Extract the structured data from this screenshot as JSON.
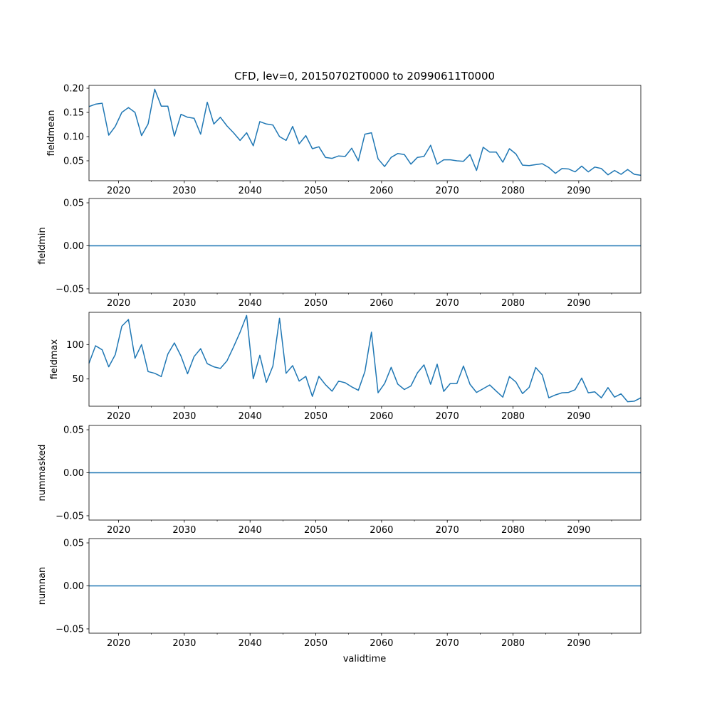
{
  "title": "CFD, lev=0, 20150702T0000 to 20990611T0000",
  "xlabel": "validtime",
  "chart_data": {
    "type": "line",
    "title": "CFD, lev=0, 20150702T0000 to 20990611T0000",
    "xlabel": "validtime",
    "xlim": [
      2015.5,
      2099.44
    ],
    "x_start": 2015.5,
    "x_end": 2099.44,
    "n_points": 85,
    "xticks": [
      2020,
      2030,
      2040,
      2050,
      2060,
      2070,
      2080,
      2090
    ],
    "xminor_ticks": [
      2025,
      2035,
      2045,
      2055,
      2065,
      2075,
      2085,
      2095
    ],
    "line_color": "#1f77b4",
    "subplots": [
      {
        "ylabel": "fieldmean",
        "ylim": [
          0.0088,
          0.2059
        ],
        "yticks": [
          0.05,
          0.1,
          0.15,
          0.2
        ],
        "ytick_labels": [
          "0.05",
          "0.10",
          "0.15",
          "0.20"
        ],
        "values": [
          0.162,
          0.167,
          0.169,
          0.103,
          0.121,
          0.15,
          0.16,
          0.15,
          0.102,
          0.126,
          0.198,
          0.163,
          0.163,
          0.101,
          0.146,
          0.14,
          0.138,
          0.105,
          0.171,
          0.126,
          0.14,
          0.122,
          0.108,
          0.092,
          0.108,
          0.081,
          0.131,
          0.126,
          0.124,
          0.1,
          0.092,
          0.121,
          0.085,
          0.102,
          0.075,
          0.079,
          0.057,
          0.055,
          0.06,
          0.059,
          0.076,
          0.05,
          0.105,
          0.108,
          0.054,
          0.038,
          0.057,
          0.065,
          0.063,
          0.043,
          0.057,
          0.059,
          0.082,
          0.043,
          0.052,
          0.052,
          0.05,
          0.049,
          0.063,
          0.03,
          0.078,
          0.068,
          0.068,
          0.047,
          0.075,
          0.064,
          0.041,
          0.04,
          0.042,
          0.044,
          0.036,
          0.024,
          0.034,
          0.033,
          0.027,
          0.039,
          0.027,
          0.037,
          0.034,
          0.021,
          0.03,
          0.022,
          0.032,
          0.022,
          0.02
        ]
      },
      {
        "ylabel": "fieldmin",
        "ylim": [
          -0.055,
          0.055
        ],
        "yticks": [
          -0.05,
          0.0,
          0.05
        ],
        "ytick_labels": [
          "−0.05",
          "0.00",
          "0.05"
        ],
        "values": "constant:0"
      },
      {
        "ylabel": "fieldmax",
        "ylim": [
          10.4,
          146.9
        ],
        "yticks": [
          50,
          100
        ],
        "ytick_labels": [
          "50",
          "100"
        ],
        "values": [
          72.9,
          98.3,
          92.4,
          67.7,
          85.4,
          126.7,
          136.5,
          80.2,
          100,
          60.8,
          58.3,
          53.5,
          86.1,
          102.4,
          83.3,
          57.6,
          82.6,
          94.1,
          72.2,
          67.7,
          65.3,
          76.4,
          96.5,
          118,
          142.4,
          50.3,
          84.4,
          45.1,
          68.8,
          138.2,
          58.3,
          69.4,
          46.9,
          53.8,
          24.7,
          53.8,
          41.7,
          32.3,
          46.9,
          44.5,
          38.5,
          33.6,
          60.8,
          118,
          29.9,
          43.4,
          67.0,
          42.7,
          34.7,
          39.9,
          59.0,
          70.5,
          42.4,
          71.5,
          32,
          43.4,
          43.4,
          68.8,
          42.4,
          30.5,
          35.8,
          41.3,
          32.3,
          23.6,
          53.5,
          45.5,
          28.8,
          37.8,
          66.7,
          55.9,
          22.6,
          26.8,
          29.9,
          30.5,
          34.4,
          51.4,
          29.9,
          31.3,
          22.6,
          37.5,
          23.6,
          28.4,
          17,
          17.7,
          22.6
        ]
      },
      {
        "ylabel": "nummasked",
        "ylim": [
          -0.055,
          0.055
        ],
        "yticks": [
          -0.05,
          0.0,
          0.05
        ],
        "ytick_labels": [
          "−0.05",
          "0.00",
          "0.05"
        ],
        "values": "constant:0"
      },
      {
        "ylabel": "numnan",
        "ylim": [
          -0.055,
          0.055
        ],
        "yticks": [
          -0.05,
          0.0,
          0.05
        ],
        "ytick_labels": [
          "−0.05",
          "0.00",
          "0.05"
        ],
        "values": "constant:0"
      }
    ]
  }
}
